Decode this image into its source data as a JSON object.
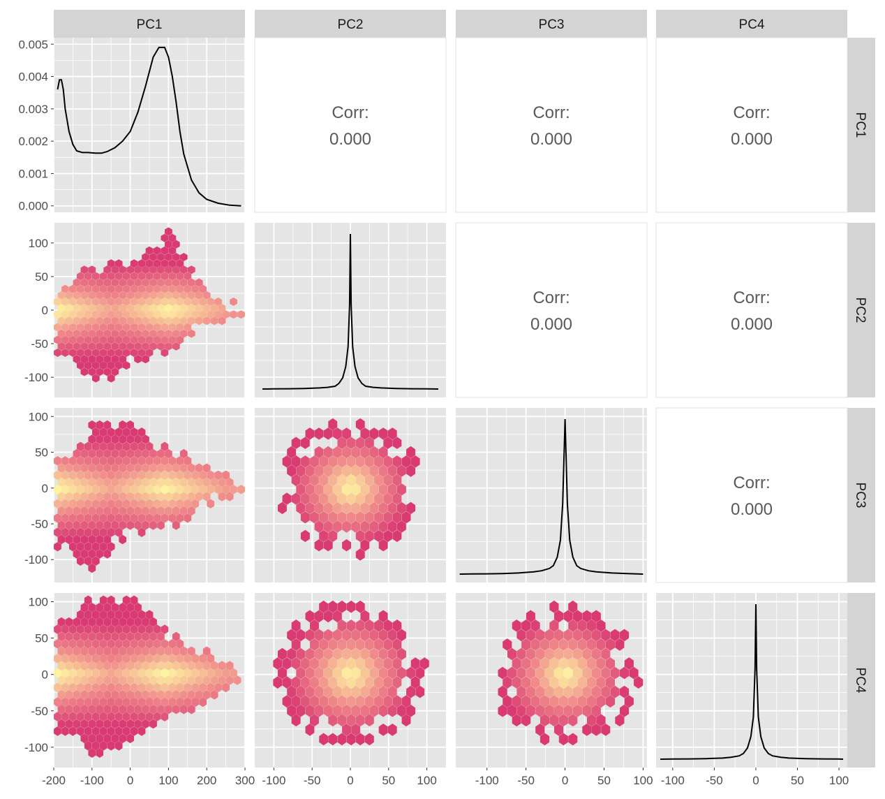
{
  "variables": [
    "PC1",
    "PC2",
    "PC3",
    "PC4"
  ],
  "correlation": {
    "label": "Corr:",
    "pairs": [
      {
        "row": 0,
        "col": 1,
        "value": "0.000"
      },
      {
        "row": 0,
        "col": 2,
        "value": "0.000"
      },
      {
        "row": 0,
        "col": 3,
        "value": "0.000"
      },
      {
        "row": 1,
        "col": 2,
        "value": "0.000"
      },
      {
        "row": 1,
        "col": 3,
        "value": "0.000"
      },
      {
        "row": 2,
        "col": 3,
        "value": "0.000"
      }
    ]
  },
  "colors": {
    "panel_bg": "#e5e5e5",
    "grid": "#ffffff",
    "strip": "#d4d4d4",
    "hex_low": "#d93a72",
    "hex_mid": "#f0898a",
    "hex_high": "#fffaa0",
    "density_line": "#000000"
  },
  "chart_data": {
    "type": "scatterplot_matrix",
    "panels_upper": "correlation",
    "panels_diag": "density",
    "panels_lower": "hexbin",
    "x_axes": [
      {
        "var": "PC1",
        "range": [
          -200,
          300
        ],
        "ticks": [
          "-200",
          "-100",
          "0",
          "100",
          "200",
          "300"
        ],
        "tick_values": [
          -200,
          -100,
          0,
          100,
          200,
          300
        ]
      },
      {
        "var": "PC2",
        "range": [
          -125,
          125
        ],
        "ticks": [
          "-100",
          "-50",
          "0",
          "50",
          "100"
        ],
        "tick_values": [
          -100,
          -50,
          0,
          50,
          100
        ]
      },
      {
        "var": "PC3",
        "range": [
          -140,
          105
        ],
        "ticks": [
          "-100",
          "-50",
          "0",
          "50",
          "100"
        ],
        "tick_values": [
          -100,
          -50,
          0,
          50,
          100
        ]
      },
      {
        "var": "PC4",
        "range": [
          -120,
          110
        ],
        "ticks": [
          "-100",
          "-50",
          "0",
          "50",
          "100"
        ],
        "tick_values": [
          -100,
          -50,
          0,
          50,
          100
        ]
      }
    ],
    "y_axes": [
      {
        "var": "PC1",
        "range": [
          -0.0002,
          0.0052
        ],
        "ticks": [
          "0.000",
          "0.001",
          "0.002",
          "0.003",
          "0.004",
          "0.005"
        ],
        "tick_values": [
          0,
          0.001,
          0.002,
          0.003,
          0.004,
          0.005
        ]
      },
      {
        "var": "PC2",
        "range": [
          -130,
          130
        ],
        "ticks": [
          "-100",
          "-50",
          "0",
          "50",
          "100"
        ],
        "tick_values": [
          -100,
          -50,
          0,
          50,
          100
        ]
      },
      {
        "var": "PC3",
        "range": [
          -132,
          112
        ],
        "ticks": [
          "-100",
          "-50",
          "0",
          "50",
          "100"
        ],
        "tick_values": [
          -100,
          -50,
          0,
          50,
          100
        ]
      },
      {
        "var": "PC4",
        "range": [
          -128,
          112
        ],
        "ticks": [
          "-100",
          "-50",
          "0",
          "50",
          "100"
        ],
        "tick_values": [
          -100,
          -50,
          0,
          50,
          100
        ]
      }
    ],
    "densities": [
      {
        "var": "PC1",
        "x": [
          -190,
          -185,
          -180,
          -175,
          -170,
          -160,
          -150,
          -140,
          -125,
          -110,
          -90,
          -75,
          -60,
          -40,
          -20,
          0,
          20,
          40,
          60,
          75,
          90,
          100,
          110,
          120,
          130,
          140,
          160,
          180,
          200,
          230,
          260,
          290
        ],
        "y": [
          0.0036,
          0.0039,
          0.0039,
          0.0036,
          0.003,
          0.0023,
          0.0019,
          0.0017,
          0.00165,
          0.00165,
          0.00163,
          0.00163,
          0.00168,
          0.0018,
          0.002,
          0.0023,
          0.0029,
          0.0037,
          0.0046,
          0.0049,
          0.0049,
          0.0046,
          0.004,
          0.0032,
          0.0023,
          0.0016,
          0.0008,
          0.0004,
          0.0002,
          8e-05,
          2e-05,
          0.0
        ]
      },
      {
        "var": "PC2",
        "x": [
          -115,
          -100,
          -80,
          -60,
          -40,
          -30,
          -20,
          -15,
          -10,
          -6,
          -3,
          -1,
          0,
          1,
          3,
          6,
          10,
          15,
          20,
          30,
          40,
          60,
          80,
          100,
          115
        ],
        "y": [
          0.0,
          0.0005,
          0.001,
          0.002,
          0.004,
          0.006,
          0.01,
          0.02,
          0.04,
          0.08,
          0.15,
          0.3,
          0.55,
          0.3,
          0.15,
          0.08,
          0.04,
          0.02,
          0.01,
          0.006,
          0.004,
          0.002,
          0.001,
          0.0005,
          0.0
        ]
      },
      {
        "var": "PC3",
        "x": [
          -135,
          -120,
          -100,
          -80,
          -60,
          -40,
          -30,
          -20,
          -15,
          -10,
          -6,
          -3,
          -1,
          0,
          1,
          3,
          6,
          10,
          15,
          20,
          30,
          40,
          60,
          80,
          100
        ],
        "y": [
          0.0,
          0.0005,
          0.001,
          0.002,
          0.004,
          0.008,
          0.012,
          0.02,
          0.03,
          0.06,
          0.12,
          0.25,
          0.45,
          0.55,
          0.45,
          0.25,
          0.12,
          0.06,
          0.03,
          0.02,
          0.012,
          0.008,
          0.004,
          0.002,
          0.0
        ]
      },
      {
        "var": "PC4",
        "x": [
          -115,
          -100,
          -80,
          -60,
          -40,
          -30,
          -20,
          -15,
          -10,
          -6,
          -3,
          -1,
          0,
          1,
          3,
          6,
          10,
          15,
          20,
          30,
          40,
          60,
          80,
          100,
          105
        ],
        "y": [
          0.0,
          0.0005,
          0.001,
          0.002,
          0.004,
          0.007,
          0.012,
          0.02,
          0.04,
          0.08,
          0.15,
          0.32,
          0.55,
          0.32,
          0.15,
          0.08,
          0.04,
          0.02,
          0.012,
          0.007,
          0.004,
          0.002,
          0.001,
          0.0005,
          0.0
        ]
      }
    ],
    "hexbin_panels": [
      {
        "x_var": "PC1",
        "y_var": "PC2",
        "hex": {
          "dx": 20,
          "dy": 9.5
        },
        "shape": {
          "x_min": -190,
          "x_max": 290,
          "y_center": 0,
          "core_halfwidth": 28,
          "peak_x": [
            -190,
            100
          ],
          "spread_up": [
            [
              -160,
              40
            ],
            [
              -100,
              70
            ],
            [
              0,
              75
            ],
            [
              80,
              100
            ],
            [
              100,
              120
            ],
            [
              160,
              60
            ],
            [
              220,
              20
            ],
            [
              290,
              10
            ]
          ],
          "spread_down": [
            [
              -160,
              -70
            ],
            [
              -100,
              -120
            ],
            [
              -40,
              -100
            ],
            [
              0,
              -80
            ],
            [
              80,
              -70
            ],
            [
              160,
              -40
            ],
            [
              220,
              -20
            ],
            [
              290,
              -10
            ]
          ]
        }
      },
      {
        "x_var": "PC1",
        "y_var": "PC3",
        "hex": {
          "dx": 20,
          "dy": 10
        },
        "shape": {
          "x_min": -190,
          "x_max": 290,
          "y_center": 0,
          "core_halfwidth": 25,
          "peak_x": [
            -190,
            90
          ],
          "spread_up": [
            [
              -160,
              50
            ],
            [
              -100,
              90
            ],
            [
              0,
              100
            ],
            [
              60,
              70
            ],
            [
              100,
              60
            ],
            [
              160,
              45
            ],
            [
              220,
              30
            ],
            [
              290,
              10
            ]
          ],
          "spread_down": [
            [
              -160,
              -90
            ],
            [
              -100,
              -120
            ],
            [
              -40,
              -80
            ],
            [
              0,
              -70
            ],
            [
              80,
              -70
            ],
            [
              160,
              -45
            ],
            [
              220,
              -20
            ],
            [
              290,
              -10
            ]
          ]
        }
      },
      {
        "x_var": "PC1",
        "y_var": "PC4",
        "hex": {
          "dx": 20,
          "dy": 10
        },
        "shape": {
          "x_min": -190,
          "x_max": 290,
          "y_center": 0,
          "core_halfwidth": 25,
          "peak_x": [
            -190,
            90
          ],
          "spread_up": [
            [
              -160,
              80
            ],
            [
              -100,
              110
            ],
            [
              0,
              110
            ],
            [
              40,
              90
            ],
            [
              100,
              60
            ],
            [
              160,
              40
            ],
            [
              220,
              30
            ],
            [
              290,
              10
            ]
          ],
          "spread_down": [
            [
              -160,
              -80
            ],
            [
              -100,
              -120
            ],
            [
              -20,
              -100
            ],
            [
              40,
              -80
            ],
            [
              100,
              -60
            ],
            [
              160,
              -50
            ],
            [
              220,
              -40
            ],
            [
              290,
              -10
            ]
          ]
        }
      },
      {
        "x_var": "PC2",
        "y_var": "PC3",
        "hex": {
          "dx": 12,
          "dy": 13,
          "center": [
            0,
            0
          ],
          "radius": 95
        }
      },
      {
        "x_var": "PC2",
        "y_var": "PC4",
        "hex": {
          "dx": 12,
          "dy": 13,
          "center": [
            0,
            0
          ],
          "radius": 100
        }
      },
      {
        "x_var": "PC3",
        "y_var": "PC4",
        "hex": {
          "dx": 12,
          "dy": 13,
          "center": [
            0,
            0
          ],
          "radius": 95
        }
      }
    ]
  }
}
